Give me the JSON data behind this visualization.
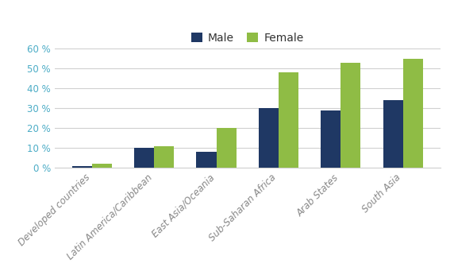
{
  "categories": [
    "Developed countries",
    "Latin America/Caribbean",
    "East Asia/Oceania",
    "Sub-Saharan Africa",
    "Arab States",
    "South Asia"
  ],
  "male_values": [
    1,
    10,
    8,
    30,
    29,
    34
  ],
  "female_values": [
    2,
    11,
    20,
    48,
    53,
    55
  ],
  "male_color": "#1f3864",
  "female_color": "#8fbc45",
  "legend_labels": [
    "Male",
    "Female"
  ],
  "ylim": [
    0,
    60
  ],
  "yticks": [
    0,
    10,
    20,
    30,
    40,
    50,
    60
  ],
  "ytick_labels": [
    "0 %",
    "10 %",
    "20 %",
    "30 %",
    "40 %",
    "50 %",
    "60 %"
  ],
  "ytick_color": "#4bacc6",
  "bar_width": 0.32,
  "background_color": "#ffffff",
  "grid_color": "#d0d0d0",
  "xtick_label_fontsize": 8.5,
  "ytick_label_fontsize": 8.5,
  "legend_fontsize": 10
}
